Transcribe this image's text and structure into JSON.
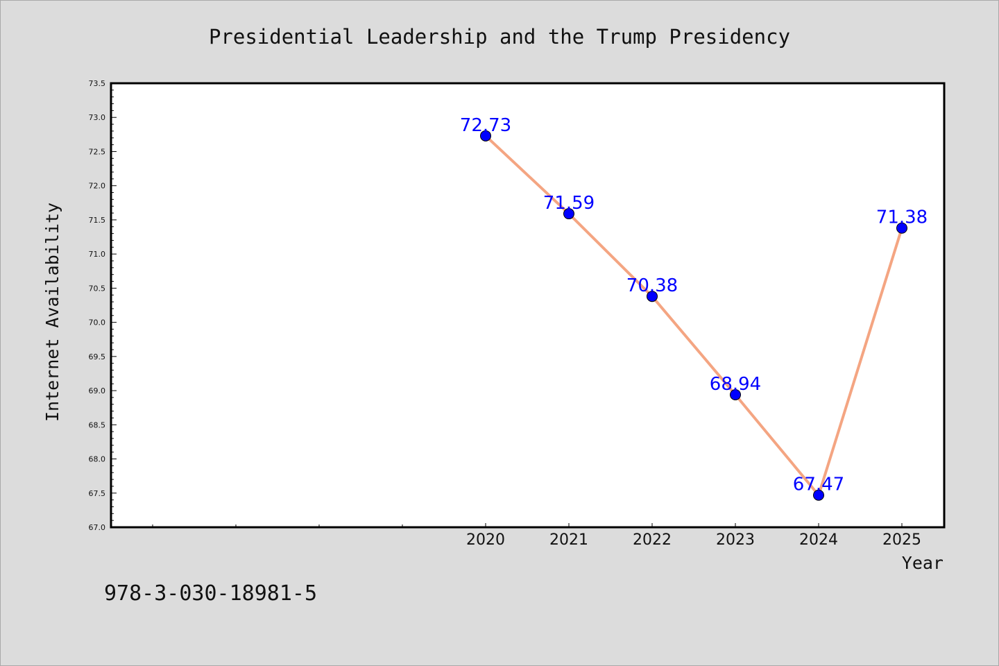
{
  "chart_data": {
    "type": "line",
    "title": "Presidential Leadership and the Trump Presidency",
    "xlabel": "Year",
    "ylabel": "Internet Availability",
    "x": [
      "2020",
      "2021",
      "2022",
      "2023",
      "2024",
      "2025"
    ],
    "values": [
      72.73,
      71.59,
      70.38,
      68.94,
      67.47,
      71.38
    ],
    "data_labels": [
      "72.73",
      "71.59",
      "70.38",
      "68.94",
      "67.47",
      "71.38"
    ],
    "ylim": [
      67.0,
      73.5
    ],
    "ytick_labels": [
      "67.0",
      "67.5",
      "68.0",
      "68.5",
      "69.0",
      "69.5",
      "70.0",
      "70.5",
      "71.0",
      "71.5",
      "72.0",
      "72.5",
      "73.0",
      "73.5"
    ],
    "grid": false,
    "line_color": "#f4a582",
    "marker_color": "#0000ff",
    "label_color": "#0000ff"
  },
  "footer": {
    "text": "978-3-030-18981-5"
  }
}
